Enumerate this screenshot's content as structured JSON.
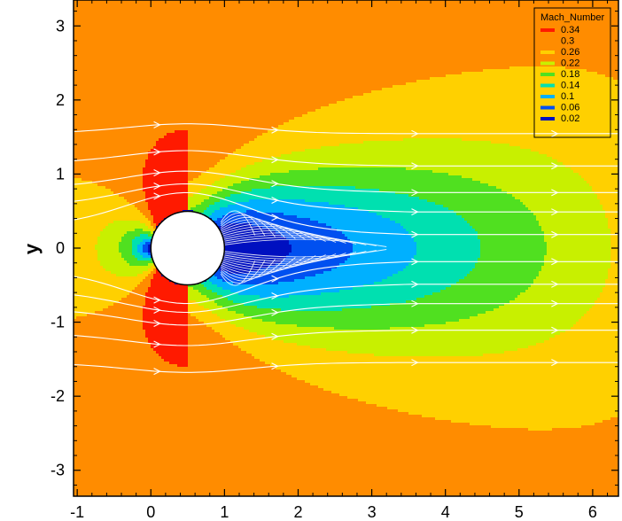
{
  "chart_data": {
    "type": "heatmap",
    "title": "",
    "xlabel": "",
    "ylabel": "y",
    "xlim": [
      -1.05,
      6.35
    ],
    "ylim": [
      -3.35,
      3.35
    ],
    "x_ticks": [
      -1,
      0,
      1,
      2,
      3,
      4,
      5,
      6
    ],
    "y_ticks": [
      -3,
      -2,
      -1,
      0,
      1,
      2,
      3
    ],
    "x_tick_labels": [
      "-1",
      "0",
      "1",
      "2",
      "3",
      "4",
      "5",
      "6"
    ],
    "y_tick_labels": [
      "-3",
      "-2",
      "-1",
      "0",
      "1",
      "2",
      "3"
    ],
    "grid": false,
    "legend": {
      "title": "Mach_Number",
      "placement": "top-right",
      "levels": [
        {
          "label": "0.34",
          "color": "#ff1a00"
        },
        {
          "label": "0.3",
          "color": "#ff8c00"
        },
        {
          "label": "0.26",
          "color": "#ffd000"
        },
        {
          "label": "0.22",
          "color": "#c8f000"
        },
        {
          "label": "0.18",
          "color": "#50e020"
        },
        {
          "label": "0.14",
          "color": "#00e0b0"
        },
        {
          "label": "0.1",
          "color": "#00b0ff"
        },
        {
          "label": "0.06",
          "color": "#0050f0"
        },
        {
          "label": "0.02",
          "color": "#0010c0"
        }
      ]
    },
    "field": {
      "variable": "Mach_Number",
      "freestream": 0.31,
      "peak": 0.36,
      "cylinder_center": [
        0.5,
        0.0
      ],
      "cylinder_radius": 0.5,
      "wake_length": 5.8
    },
    "streamline_start_y": [
      1.55,
      1.15,
      0.82,
      0.58,
      0.3,
      -0.3,
      -0.58,
      -0.82,
      -1.15,
      -1.55
    ]
  }
}
